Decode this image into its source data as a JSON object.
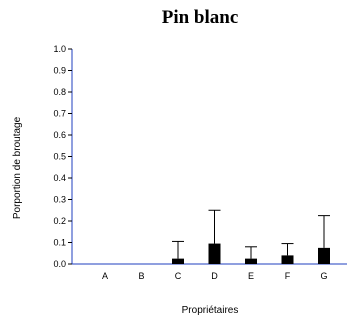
{
  "chart_data": {
    "type": "bar",
    "title": "Pin blanc",
    "xlabel": "Propriétaires",
    "ylabel": "Porportion de broutage",
    "categories": [
      "A",
      "B",
      "C",
      "D",
      "E",
      "F",
      "G"
    ],
    "values": [
      0,
      0,
      0.025,
      0.095,
      0.025,
      0.04,
      0.075
    ],
    "error_upper": [
      0,
      0,
      0.105,
      0.25,
      0.08,
      0.095,
      0.225
    ],
    "ylim": [
      0,
      1.0
    ],
    "yticks": [
      "0.0",
      "0.1",
      "0.2",
      "0.3",
      "0.4",
      "0.5",
      "0.6",
      "0.7",
      "0.8",
      "0.9",
      "1.0"
    ],
    "grid": false,
    "colors": {
      "bar": "#000000",
      "y_axis": "#1f3fbf",
      "x_axis": "#1f3fbf"
    }
  }
}
